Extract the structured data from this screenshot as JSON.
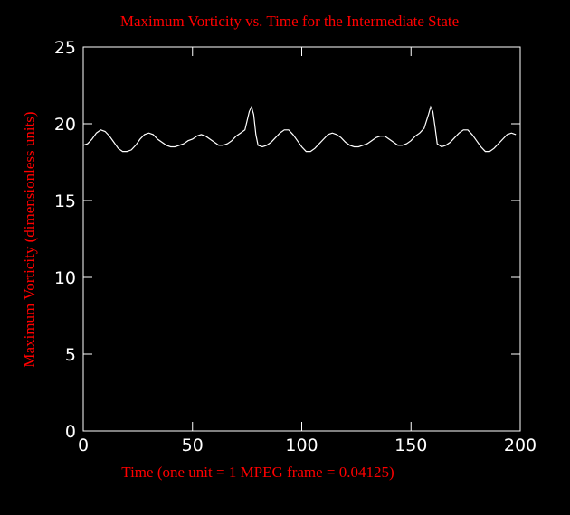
{
  "chart_data": {
    "type": "line",
    "title": "Maximum Vorticity vs. Time  for the Intermediate State",
    "x_label": "Time (one unit = 1 MPEG frame = 0.04125)",
    "y_label": "Maximum Vorticity (dimensionless units)",
    "xlim": [
      0,
      200
    ],
    "xticks": [
      0,
      50,
      100,
      150,
      200
    ],
    "ylim": [
      0,
      25
    ],
    "yticks": [
      0,
      5,
      10,
      15,
      20,
      25
    ],
    "x": [
      0,
      2,
      4,
      6,
      8,
      10,
      12,
      14,
      16,
      18,
      20,
      22,
      24,
      26,
      28,
      30,
      32,
      34,
      36,
      38,
      40,
      42,
      44,
      46,
      48,
      50,
      52,
      54,
      56,
      58,
      60,
      62,
      64,
      66,
      68,
      70,
      72,
      74,
      76,
      77,
      78,
      79,
      80,
      82,
      84,
      86,
      88,
      90,
      92,
      94,
      96,
      98,
      100,
      102,
      104,
      106,
      108,
      110,
      112,
      114,
      116,
      118,
      120,
      122,
      124,
      126,
      128,
      130,
      132,
      134,
      136,
      138,
      140,
      142,
      144,
      146,
      148,
      150,
      152,
      154,
      156,
      158,
      159,
      160,
      161,
      162,
      164,
      166,
      168,
      170,
      172,
      174,
      176,
      178,
      180,
      182,
      184,
      186,
      188,
      190,
      192,
      194,
      196,
      198
    ],
    "series": [
      {
        "color": "#ffffff",
        "values": [
          18.6,
          18.7,
          19.0,
          19.4,
          19.6,
          19.5,
          19.2,
          18.8,
          18.4,
          18.2,
          18.2,
          18.3,
          18.6,
          19.0,
          19.3,
          19.4,
          19.3,
          19.0,
          18.8,
          18.6,
          18.5,
          18.5,
          18.6,
          18.7,
          18.9,
          19.0,
          19.2,
          19.3,
          19.2,
          19.0,
          18.8,
          18.6,
          18.6,
          18.7,
          18.9,
          19.2,
          19.4,
          19.6,
          20.8,
          21.1,
          20.6,
          19.3,
          18.6,
          18.5,
          18.6,
          18.8,
          19.1,
          19.4,
          19.6,
          19.6,
          19.3,
          18.9,
          18.5,
          18.2,
          18.2,
          18.4,
          18.7,
          19.0,
          19.3,
          19.4,
          19.3,
          19.1,
          18.8,
          18.6,
          18.5,
          18.5,
          18.6,
          18.7,
          18.9,
          19.1,
          19.2,
          19.2,
          19.0,
          18.8,
          18.6,
          18.6,
          18.7,
          18.9,
          19.2,
          19.4,
          19.7,
          20.6,
          21.1,
          20.8,
          19.8,
          18.7,
          18.5,
          18.6,
          18.8,
          19.1,
          19.4,
          19.6,
          19.6,
          19.3,
          18.9,
          18.5,
          18.2,
          18.2,
          18.4,
          18.7,
          19.0,
          19.3,
          19.4,
          19.3
        ]
      }
    ]
  }
}
